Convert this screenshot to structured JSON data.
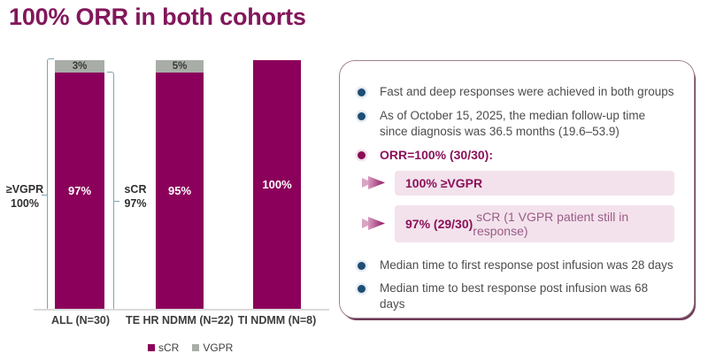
{
  "title": "100% ORR in both cohorts",
  "chart_data": {
    "type": "bar",
    "stacked": true,
    "title": "",
    "xlabel": "",
    "ylabel": "",
    "unit": "%",
    "ylim": [
      0,
      100
    ],
    "grid": false,
    "legend_position": "bottom",
    "categories": [
      "ALL (N=30)",
      "TE HR NDMM (N=22)",
      "TI NDMM (N=8)"
    ],
    "series": [
      {
        "name": "sCR",
        "color": "#8B005A",
        "values": [
          97,
          95,
          100
        ],
        "labels": [
          "97%",
          "95%",
          "100%"
        ]
      },
      {
        "name": "VGPR",
        "color": "#A9ADA8",
        "values": [
          3,
          5,
          0
        ],
        "labels": [
          "3%",
          "5%",
          ""
        ]
      }
    ],
    "annotations": [
      {
        "name": "vgpr-bracket",
        "side": "left",
        "bar": "ALL (N=30)",
        "span": "total bar (100%)",
        "label_line1": "≥VGPR",
        "label_line2": "100%"
      },
      {
        "name": "scr-bracket",
        "side": "right",
        "bar": "ALL (N=30)",
        "span": "sCR segment (97%)",
        "label_line1": "sCR",
        "label_line2": "97%"
      }
    ]
  },
  "legend": {
    "items": [
      {
        "label": "sCR",
        "color": "#8B005A"
      },
      {
        "label": "VGPR",
        "color": "#A9ADA8"
      }
    ]
  },
  "panel": {
    "bullets": [
      {
        "text": "Fast and deep responses were achieved in both groups",
        "style": "normal"
      },
      {
        "text": "As of October 15, 2025, the median follow-up time since diagnosis was 36.5 months (19.6–53.9)",
        "style": "normal"
      },
      {
        "text": "ORR=100% (30/30):",
        "style": "emphasis"
      },
      {
        "text": "Median time to first response post infusion was 28 days",
        "style": "normal"
      },
      {
        "text": "Median time to best response post infusion was 68 days",
        "style": "normal"
      }
    ],
    "highlights": [
      {
        "bold": "100% ≥VGPR",
        "rest": ""
      },
      {
        "bold": "97% (29/30)",
        "rest": " sCR (1 VGPR patient still in response)"
      }
    ]
  },
  "colors": {
    "title_magenta": "#82175B",
    "bar_scr_magenta": "#8B005A",
    "bar_vgpr_gray": "#A9ADA8",
    "bullet_navy": "#1E4E74",
    "bullet_magenta": "#8B0D54",
    "bracket_blue": "#7FA3B5",
    "panel_border": "#A08391",
    "panel_shadow": "#6E3A58",
    "highlight_bg": "#F3E2EC",
    "body_text": "#4D4D4D"
  }
}
